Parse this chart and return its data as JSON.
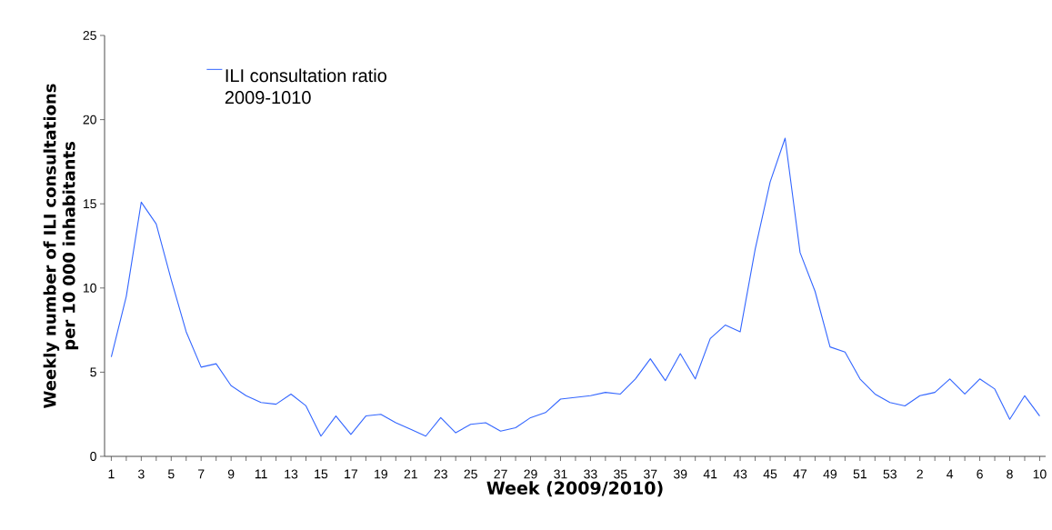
{
  "chart_data": {
    "type": "line",
    "xlabel": "Week (2009/2010)",
    "ylabel": "Weekly number of ILI consultations per 10 000 inhabitants",
    "categories": [
      "1",
      null,
      "3",
      null,
      "5",
      null,
      "7",
      null,
      "9",
      null,
      "11",
      null,
      "13",
      null,
      "15",
      null,
      "17",
      null,
      "19",
      null,
      "21",
      null,
      "23",
      null,
      "25",
      null,
      "27",
      null,
      "29",
      null,
      "31",
      null,
      "33",
      null,
      "35",
      null,
      "37",
      null,
      "39",
      null,
      "41",
      null,
      "43",
      null,
      "45",
      null,
      "47",
      null,
      "49",
      null,
      "51",
      null,
      "53",
      null,
      "2",
      null,
      "4",
      null,
      "6",
      null,
      "8",
      null,
      "10"
    ],
    "series": [
      {
        "name": "ILI consultation ratio 2009-1010",
        "color": "#3366ff",
        "values": [
          5.9,
          9.5,
          15.1,
          13.8,
          10.5,
          7.4,
          5.3,
          5.5,
          4.2,
          3.6,
          3.2,
          3.1,
          3.7,
          3.0,
          1.2,
          2.4,
          1.3,
          2.4,
          2.5,
          2.0,
          1.6,
          1.2,
          2.3,
          1.4,
          1.9,
          2.0,
          1.5,
          1.7,
          2.3,
          2.6,
          3.4,
          3.5,
          3.6,
          3.8,
          3.7,
          4.6,
          5.8,
          4.5,
          6.1,
          4.6,
          7.0,
          7.8,
          7.4,
          12.3,
          16.3,
          18.9,
          12.1,
          9.8,
          6.5,
          6.2,
          4.6,
          3.7,
          3.2,
          3.0,
          3.6,
          3.8,
          4.6,
          3.7,
          4.6,
          4.0,
          2.2,
          3.6,
          2.4
        ]
      }
    ],
    "ylim": [
      0,
      25
    ],
    "yticks": [
      0,
      5,
      10,
      15,
      20,
      25
    ],
    "legend": "top left",
    "grid": false
  }
}
